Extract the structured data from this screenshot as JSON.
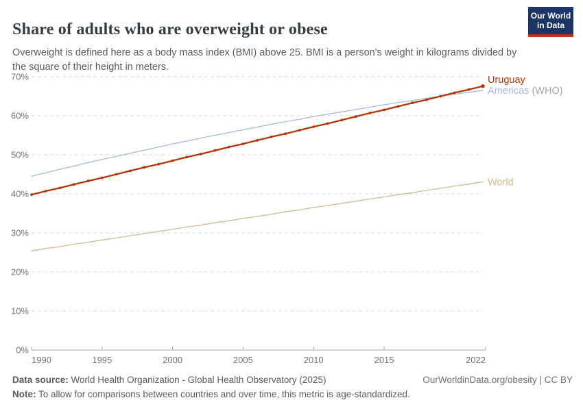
{
  "header": {
    "title": "Share of adults who are overweight or obese",
    "subtitle": "Overweight is defined here as a body mass index (BMI) above 25. BMI is a person's weight in kilograms divided by the square of their height in meters.",
    "logo": {
      "line1": "Our World",
      "line2": "in Data"
    }
  },
  "chart_data": {
    "type": "line",
    "title": "Share of adults who are overweight or obese",
    "xlabel": "",
    "ylabel": "",
    "ylim": [
      0,
      70
    ],
    "yticks": [
      0,
      10,
      20,
      30,
      40,
      50,
      60,
      70
    ],
    "ytick_suffix": "%",
    "xticks": [
      1990,
      1995,
      2000,
      2005,
      2010,
      2015,
      2022
    ],
    "grid": "dashed-horizontal",
    "legend_position": "line-end-labels-right",
    "x": [
      1990,
      1991,
      1992,
      1993,
      1994,
      1995,
      1996,
      1997,
      1998,
      1999,
      2000,
      2001,
      2002,
      2003,
      2004,
      2005,
      2006,
      2007,
      2008,
      2009,
      2010,
      2011,
      2012,
      2013,
      2014,
      2015,
      2016,
      2017,
      2018,
      2019,
      2020,
      2021,
      2022
    ],
    "series": [
      {
        "name": "Americas (WHO)",
        "label": "Americas",
        "label_suffix": " (WHO)",
        "suffix_color": "#a3a3a3",
        "color": "#a7b9d8",
        "marker": false,
        "values": [
          44.5,
          45.4,
          46.3,
          47.1,
          48.0,
          48.8,
          49.6,
          50.4,
          51.2,
          52.0,
          52.8,
          53.5,
          54.3,
          55.0,
          55.7,
          56.4,
          57.1,
          57.8,
          58.5,
          59.1,
          59.8,
          60.4,
          61.0,
          61.6,
          62.2,
          62.8,
          63.4,
          63.9,
          64.5,
          65.0,
          65.5,
          66.0,
          66.5
        ]
      },
      {
        "name": "World",
        "label": "World",
        "label_suffix": "",
        "suffix_color": "#a3a3a3",
        "color": "#d3b88f",
        "marker": false,
        "values": [
          25.4,
          26.0,
          26.5,
          27.1,
          27.6,
          28.2,
          28.7,
          29.3,
          29.8,
          30.4,
          30.9,
          31.5,
          32.0,
          32.6,
          33.1,
          33.7,
          34.2,
          34.8,
          35.4,
          35.9,
          36.5,
          37.0,
          37.6,
          38.1,
          38.7,
          39.2,
          39.8,
          40.3,
          40.9,
          41.4,
          42.0,
          42.5,
          43.1
        ]
      },
      {
        "name": "Uruguay",
        "label": "Uruguay",
        "label_suffix": "",
        "suffix_color": "#a3a3a3",
        "color": "#b13507",
        "marker": true,
        "values": [
          39.8,
          40.7,
          41.5,
          42.4,
          43.3,
          44.1,
          45.0,
          45.9,
          46.8,
          47.6,
          48.5,
          49.4,
          50.2,
          51.1,
          52.0,
          52.8,
          53.7,
          54.6,
          55.4,
          56.3,
          57.2,
          58.0,
          58.9,
          59.8,
          60.7,
          61.5,
          62.4,
          63.3,
          64.1,
          65.0,
          65.9,
          66.7,
          67.6
        ]
      }
    ]
  },
  "footer": {
    "data_source_label": "Data source:",
    "data_source_text": " World Health Organization - Global Health Observatory (2025)",
    "note_label": "Note:",
    "note_text": " To allow for comparisons between countries and over time, this metric is age-standardized.",
    "rights": "OurWorldinData.org/obesity | CC BY"
  }
}
